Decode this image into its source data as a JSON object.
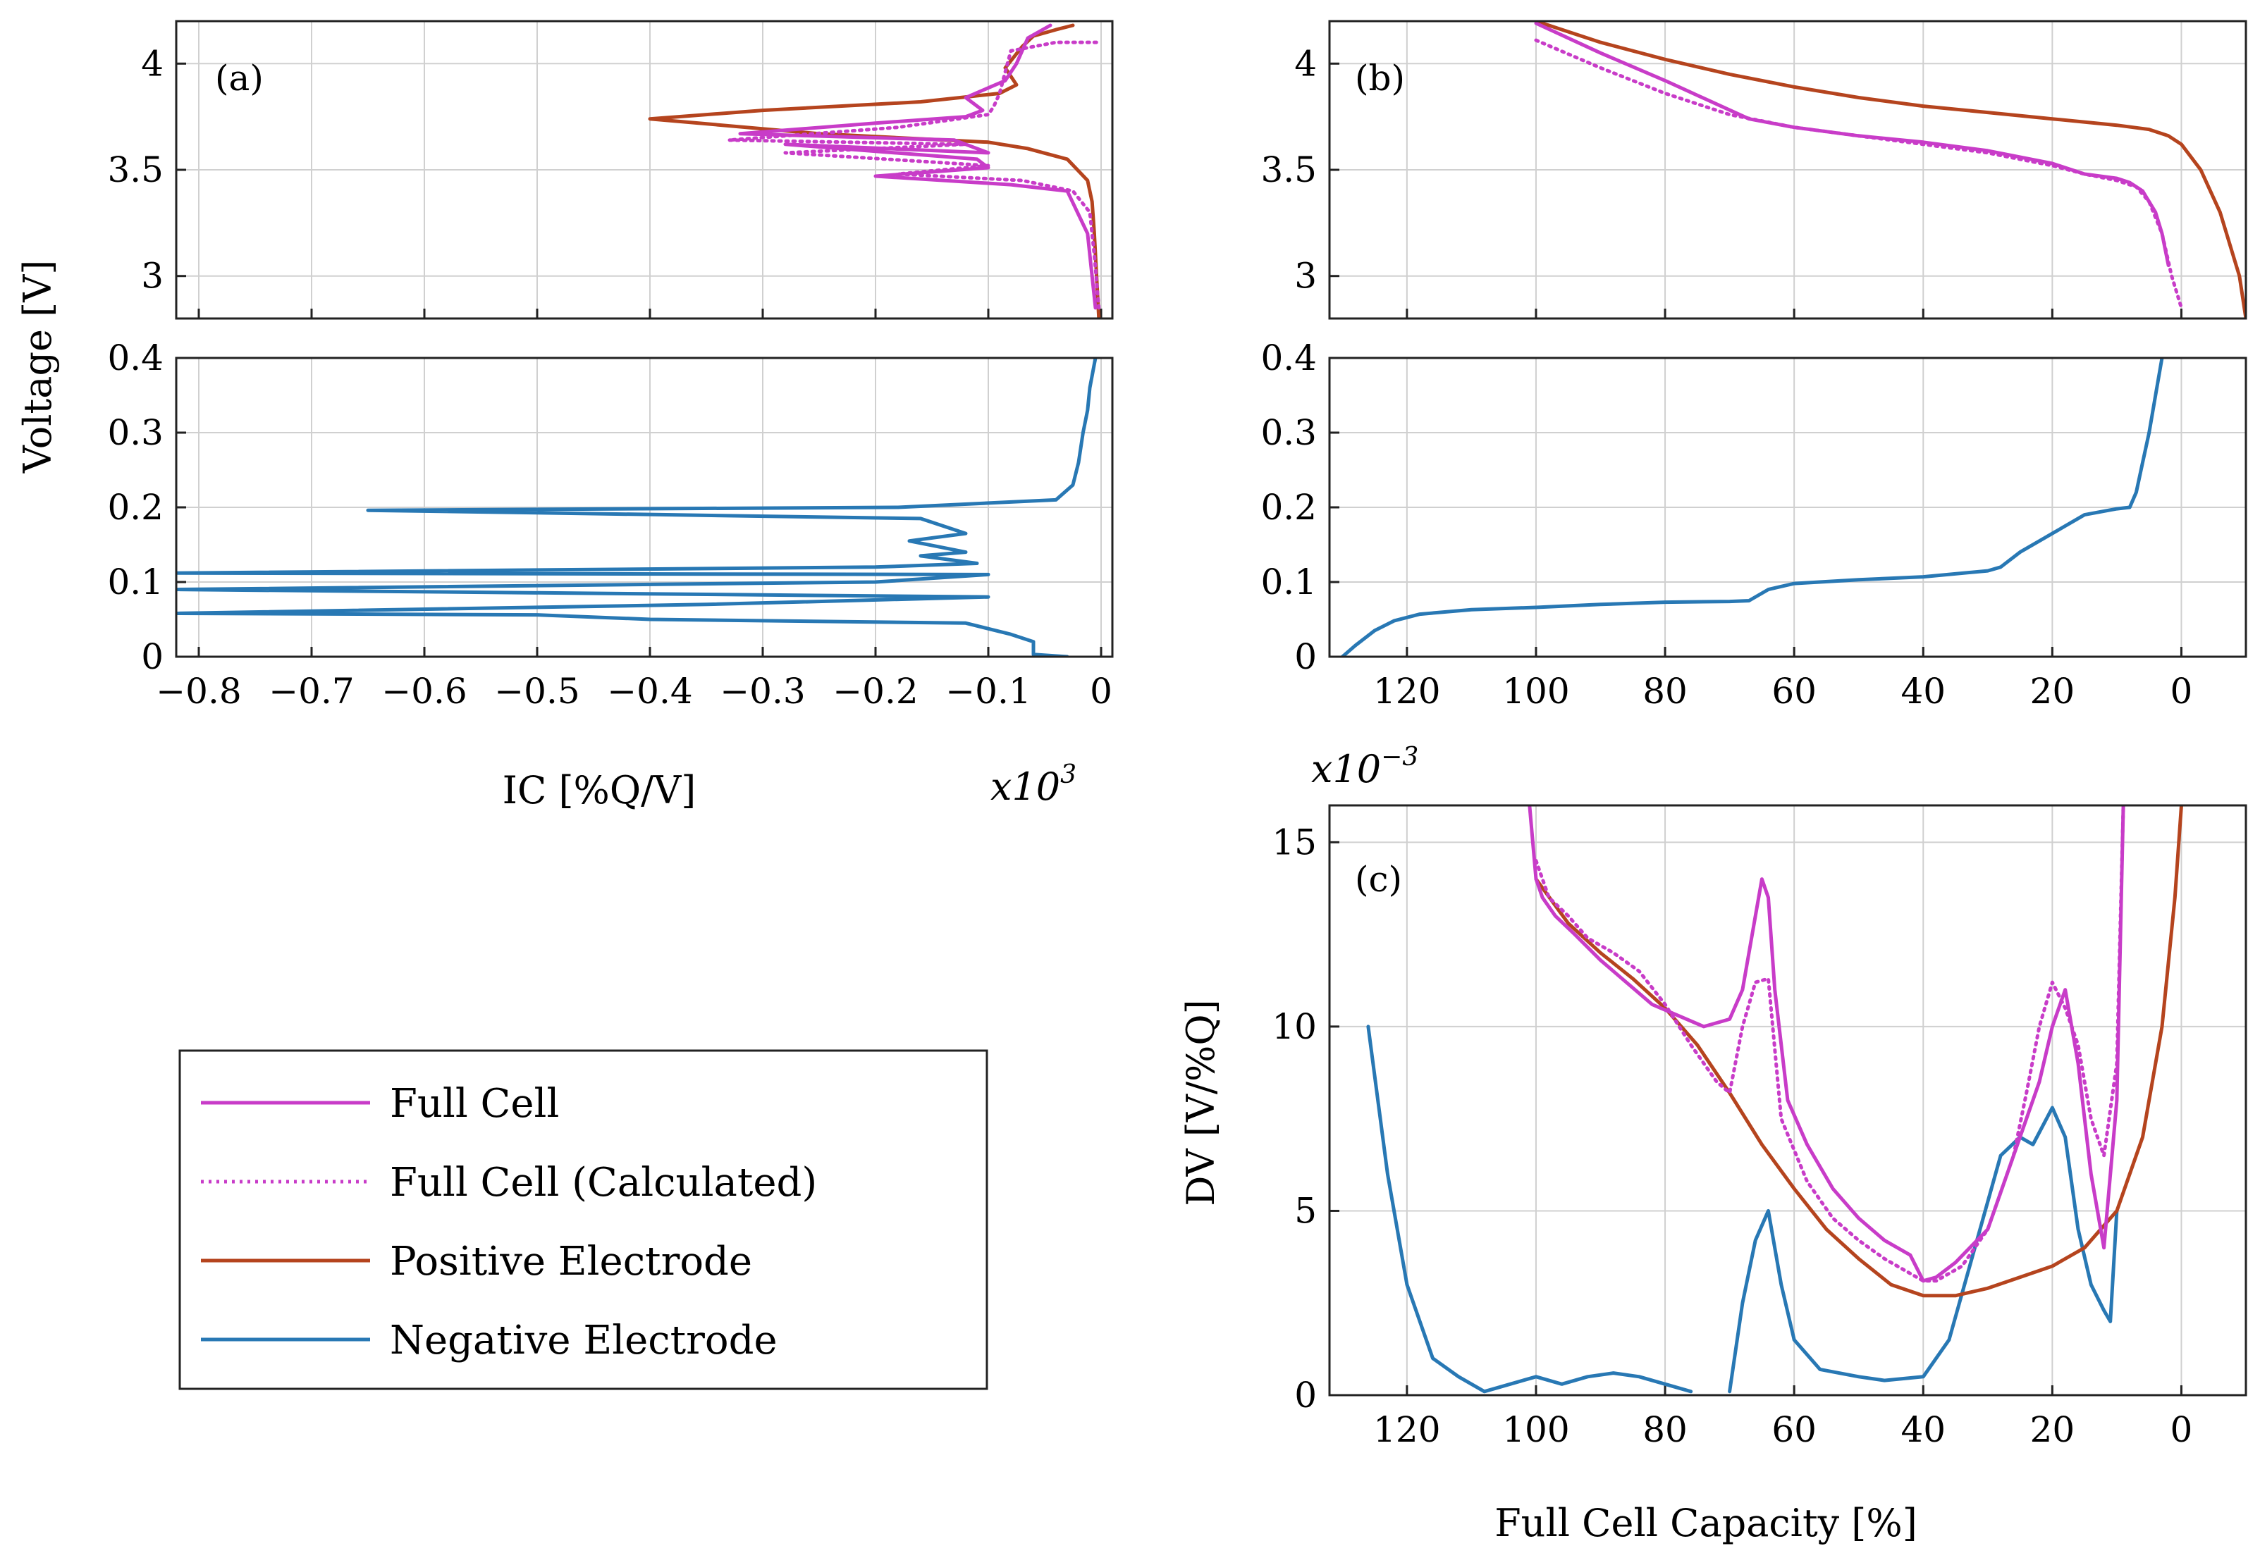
{
  "colors": {
    "full_cell": "#c83cc8",
    "full_cell_calc": "#c83cc8",
    "positive": "#b5441e",
    "negative": "#2878b4",
    "grid": "#d0d0d0",
    "axis": "#222222"
  },
  "legend": {
    "entries": [
      {
        "label": "Full Cell",
        "color": "#c83cc8",
        "style": "solid"
      },
      {
        "label": "Full Cell (Calculated)",
        "color": "#c83cc8",
        "style": "dotted"
      },
      {
        "label": "Positive Electrode",
        "color": "#b5441e",
        "style": "solid"
      },
      {
        "label": "Negative Electrode",
        "color": "#2878b4",
        "style": "solid"
      }
    ]
  },
  "shared_labels": {
    "voltage_ylabel": "Voltage [V]",
    "ic_xlabel": "IC [%Q/V]",
    "ic_multiplier": "x10",
    "ic_multiplier_exp": "3",
    "capacity_xlabel": "Full Cell Capacity [%]",
    "dv_ylabel": "DV [V/%Q]",
    "dv_multiplier": "x10",
    "dv_multiplier_exp": "−3"
  },
  "chart_data": [
    {
      "id": "a_top",
      "panel_label": "(a)",
      "type": "line",
      "xlim": [
        -0.82,
        0.01
      ],
      "ylim": [
        2.8,
        4.2
      ],
      "xticks": [
        -0.8,
        -0.7,
        -0.6,
        -0.5,
        -0.4,
        -0.3,
        -0.2,
        -0.1,
        0
      ],
      "yticks": [
        3,
        3.5,
        4
      ],
      "ytick_labels": [
        "3",
        "3.5",
        "4"
      ],
      "series": [
        {
          "name": "Positive Electrode",
          "key": "positive",
          "style": "solid",
          "x": [
            -0.002,
            -0.004,
            -0.006,
            -0.008,
            -0.012,
            -0.03,
            -0.065,
            -0.1,
            -0.25,
            -0.4,
            -0.3,
            -0.16,
            -0.09,
            -0.075,
            -0.085,
            -0.07,
            -0.06,
            -0.04,
            -0.025
          ],
          "y": [
            2.8,
            3.0,
            3.2,
            3.35,
            3.45,
            3.55,
            3.6,
            3.63,
            3.67,
            3.74,
            3.78,
            3.82,
            3.86,
            3.9,
            3.98,
            4.08,
            4.13,
            4.16,
            4.18
          ]
        },
        {
          "name": "Full Cell",
          "key": "full_cell",
          "style": "solid",
          "x": [
            -0.005,
            -0.008,
            -0.012,
            -0.03,
            -0.08,
            -0.2,
            -0.1,
            -0.11,
            -0.28,
            -0.1,
            -0.13,
            -0.32,
            -0.2,
            -0.12,
            -0.105,
            -0.12,
            -0.085,
            -0.075,
            -0.065,
            -0.045
          ],
          "y": [
            2.85,
            3.0,
            3.2,
            3.4,
            3.43,
            3.47,
            3.51,
            3.55,
            3.62,
            3.58,
            3.64,
            3.67,
            3.72,
            3.75,
            3.78,
            3.84,
            3.92,
            4.0,
            4.12,
            4.18
          ]
        },
        {
          "name": "Full Cell (Calculated)",
          "key": "full_cell_calc",
          "style": "dotted",
          "x": [
            -0.002,
            -0.006,
            -0.01,
            -0.025,
            -0.07,
            -0.18,
            -0.1,
            -0.28,
            -0.12,
            -0.33,
            -0.18,
            -0.1,
            -0.095,
            -0.09,
            -0.085,
            -0.08,
            -0.04,
            0
          ],
          "y": [
            2.85,
            3.1,
            3.3,
            3.4,
            3.45,
            3.48,
            3.52,
            3.58,
            3.62,
            3.64,
            3.7,
            3.76,
            3.8,
            3.86,
            3.96,
            4.06,
            4.1,
            4.1
          ]
        }
      ]
    },
    {
      "id": "a_bottom",
      "type": "line",
      "xlim": [
        -0.82,
        0.01
      ],
      "ylim": [
        0,
        0.4
      ],
      "xticks": [
        -0.8,
        -0.7,
        -0.6,
        -0.5,
        -0.4,
        -0.3,
        -0.2,
        -0.1,
        0
      ],
      "xtick_labels": [
        "−0.8",
        "−0.7",
        "−0.6",
        "−0.5",
        "−0.4",
        "−0.3",
        "−0.2",
        "−0.1",
        "0"
      ],
      "yticks": [
        0,
        0.1,
        0.2,
        0.3,
        0.4
      ],
      "ytick_labels": [
        "0",
        "0.1",
        "0.2",
        "0.3",
        "0.4"
      ],
      "series": [
        {
          "name": "Negative Electrode",
          "key": "negative",
          "style": "solid",
          "x": [
            -0.03,
            -0.06,
            -0.06,
            -0.08,
            -0.12,
            -0.4,
            -0.5,
            -0.82,
            -0.35,
            -0.1,
            -0.82,
            -0.2,
            -0.1,
            -0.82,
            -0.2,
            -0.11,
            -0.16,
            -0.12,
            -0.17,
            -0.12,
            -0.16,
            -0.65,
            -0.18,
            -0.04,
            -0.025,
            -0.02,
            -0.016,
            -0.012,
            -0.01,
            -0.005
          ],
          "y": [
            0.0,
            0.003,
            0.02,
            0.03,
            0.045,
            0.05,
            0.056,
            0.058,
            0.07,
            0.08,
            0.09,
            0.1,
            0.11,
            0.112,
            0.12,
            0.125,
            0.135,
            0.14,
            0.155,
            0.165,
            0.185,
            0.196,
            0.2,
            0.21,
            0.23,
            0.26,
            0.3,
            0.33,
            0.36,
            0.4
          ]
        }
      ]
    },
    {
      "id": "b_top",
      "panel_label": "(b)",
      "type": "line",
      "xlim": [
        132,
        -10
      ],
      "ylim": [
        2.8,
        4.2
      ],
      "xticks": [
        120,
        100,
        80,
        60,
        40,
        20,
        0
      ],
      "yticks": [
        3,
        3.5,
        4
      ],
      "ytick_labels": [
        "3",
        "3.5",
        "4"
      ],
      "series": [
        {
          "name": "Positive Electrode",
          "key": "positive",
          "style": "solid",
          "x": [
            100,
            90,
            80,
            70,
            60,
            50,
            40,
            30,
            20,
            10,
            5,
            2,
            0,
            -3,
            -6,
            -9,
            -10
          ],
          "y": [
            4.2,
            4.1,
            4.02,
            3.95,
            3.89,
            3.84,
            3.8,
            3.77,
            3.74,
            3.71,
            3.69,
            3.66,
            3.62,
            3.5,
            3.3,
            3.0,
            2.8
          ]
        },
        {
          "name": "Full Cell",
          "key": "full_cell",
          "style": "solid",
          "x": [
            100,
            90,
            80,
            67,
            60,
            50,
            40,
            30,
            20,
            15,
            10,
            8,
            6,
            4,
            3,
            2
          ],
          "y": [
            4.19,
            4.05,
            3.92,
            3.74,
            3.7,
            3.66,
            3.63,
            3.59,
            3.53,
            3.48,
            3.46,
            3.44,
            3.4,
            3.3,
            3.2,
            3.05
          ]
        },
        {
          "name": "Full Cell (Calculated)",
          "key": "full_cell_calc",
          "style": "dotted",
          "x": [
            100,
            90,
            80,
            70,
            60,
            50,
            40,
            30,
            20,
            15,
            10,
            7,
            5,
            3,
            1.5,
            0
          ],
          "y": [
            4.11,
            3.98,
            3.86,
            3.76,
            3.7,
            3.66,
            3.62,
            3.58,
            3.52,
            3.48,
            3.45,
            3.42,
            3.35,
            3.2,
            3.0,
            2.85
          ]
        }
      ]
    },
    {
      "id": "b_bottom",
      "type": "line",
      "xlim": [
        132,
        -10
      ],
      "ylim": [
        0,
        0.4
      ],
      "xticks": [
        120,
        100,
        80,
        60,
        40,
        20,
        0
      ],
      "xtick_labels": [
        "120",
        "100",
        "80",
        "60",
        "40",
        "20",
        "0"
      ],
      "yticks": [
        0,
        0.1,
        0.2,
        0.3,
        0.4
      ],
      "ytick_labels": [
        "0",
        "0.1",
        "0.2",
        "0.3",
        "0.4"
      ],
      "series": [
        {
          "name": "Negative Electrode",
          "key": "negative",
          "style": "solid",
          "x": [
            130,
            128,
            125,
            122,
            118,
            110,
            100,
            90,
            80,
            70,
            67,
            64,
            60,
            50,
            40,
            30,
            28,
            25,
            20,
            15,
            10,
            8,
            7,
            6,
            5,
            4,
            3
          ],
          "y": [
            0.0,
            0.015,
            0.035,
            0.048,
            0.057,
            0.063,
            0.066,
            0.07,
            0.073,
            0.074,
            0.075,
            0.09,
            0.098,
            0.103,
            0.107,
            0.115,
            0.12,
            0.14,
            0.165,
            0.19,
            0.198,
            0.2,
            0.22,
            0.26,
            0.3,
            0.35,
            0.4
          ]
        }
      ]
    },
    {
      "id": "c",
      "panel_label": "(c)",
      "type": "line",
      "xlim": [
        132,
        -10
      ],
      "ylim": [
        0,
        16
      ],
      "xticks": [
        120,
        100,
        80,
        60,
        40,
        20,
        0
      ],
      "xtick_labels": [
        "120",
        "100",
        "80",
        "60",
        "40",
        "20",
        "0"
      ],
      "yticks": [
        0,
        5,
        10,
        15
      ],
      "ytick_labels": [
        "0",
        "5",
        "10",
        "15"
      ],
      "series": [
        {
          "name": "Negative Electrode",
          "key": "negative",
          "style": "solid",
          "x": [
            126,
            123,
            120,
            116,
            112,
            108,
            104,
            100,
            96,
            92,
            88,
            84,
            80,
            76,
            null,
            70,
            68,
            66,
            64,
            62,
            60,
            56,
            50,
            46,
            40,
            36,
            32,
            28,
            25,
            23,
            20,
            18,
            16,
            14,
            12,
            11,
            10
          ],
          "y": [
            10,
            6,
            3,
            1,
            0.5,
            0.1,
            0.3,
            0.5,
            0.3,
            0.5,
            0.6,
            0.5,
            0.3,
            0.1,
            null,
            0.1,
            2.5,
            4.2,
            5,
            3,
            1.5,
            0.7,
            0.5,
            0.4,
            0.5,
            1.5,
            4,
            6.5,
            7,
            6.8,
            7.8,
            7,
            4.5,
            3,
            2.3,
            2,
            5
          ]
        },
        {
          "name": "Positive Electrode",
          "key": "positive",
          "style": "solid",
          "x": [
            100,
            95,
            90,
            85,
            80,
            75,
            70,
            65,
            60,
            55,
            50,
            45,
            40,
            35,
            30,
            25,
            20,
            15,
            10,
            6,
            3,
            1,
            0
          ],
          "y": [
            14,
            12.8,
            12,
            11.3,
            10.5,
            9.5,
            8.2,
            6.8,
            5.6,
            4.5,
            3.7,
            3.0,
            2.7,
            2.7,
            2.9,
            3.2,
            3.5,
            4.0,
            5.0,
            7.0,
            10,
            13.5,
            16
          ]
        },
        {
          "name": "Full Cell",
          "key": "full_cell",
          "style": "solid",
          "x": [
            101,
            100,
            99,
            97,
            94,
            90,
            86,
            82,
            78,
            74,
            70,
            68,
            66,
            65,
            64,
            63,
            61,
            58,
            54,
            50,
            46,
            42,
            40,
            38,
            35,
            30,
            27,
            24,
            22,
            20,
            18,
            16,
            14,
            12,
            10,
            9
          ],
          "y": [
            16,
            14,
            13.5,
            13,
            12.5,
            11.8,
            11.2,
            10.6,
            10.3,
            10.0,
            10.2,
            11,
            13,
            14,
            13.5,
            11,
            8,
            6.8,
            5.6,
            4.8,
            4.2,
            3.8,
            3.1,
            3.2,
            3.6,
            4.5,
            6,
            7.5,
            8.5,
            10,
            11,
            9,
            6,
            4,
            8,
            16
          ]
        },
        {
          "name": "Full Cell (Calculated)",
          "key": "full_cell_calc",
          "style": "dotted",
          "x": [
            100,
            98,
            95,
            92,
            88,
            84,
            80,
            76,
            72,
            70,
            68,
            66,
            64,
            62,
            58,
            54,
            50,
            46,
            42,
            40,
            38,
            34,
            30,
            26,
            24,
            22,
            20,
            18,
            16,
            14,
            12,
            10,
            9
          ],
          "y": [
            14.5,
            13.5,
            13,
            12.4,
            12,
            11.5,
            10.6,
            9.5,
            8.5,
            8.2,
            10,
            11.2,
            11.3,
            7.5,
            5.8,
            4.8,
            4.2,
            3.7,
            3.3,
            3.1,
            3.1,
            3.5,
            4.5,
            6.5,
            8.2,
            10,
            11.2,
            10.5,
            9.5,
            7.5,
            6.5,
            9,
            16
          ]
        }
      ]
    }
  ]
}
